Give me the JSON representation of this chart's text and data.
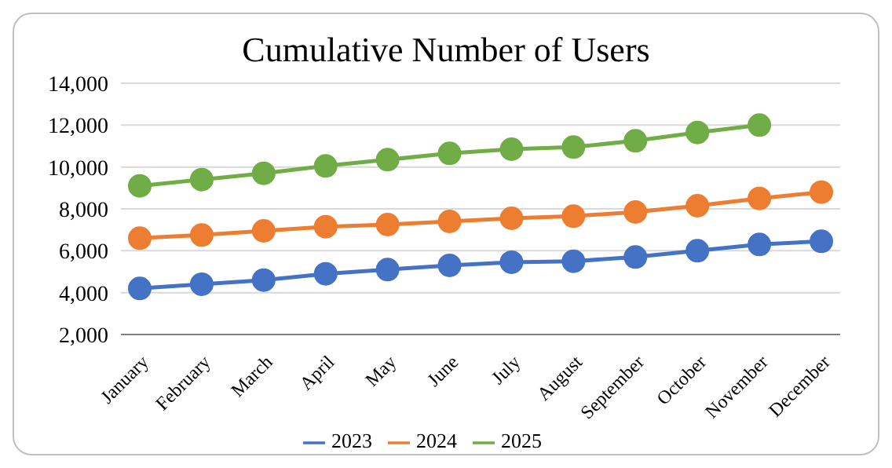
{
  "chart_data": {
    "type": "line",
    "title": "Cumulative Number of Users",
    "categories": [
      "January",
      "February",
      "March",
      "April",
      "May",
      "June",
      "July",
      "August",
      "September",
      "October",
      "November",
      "December"
    ],
    "series": [
      {
        "name": "2023",
        "color": "#4472c4",
        "values": [
          4200,
          4400,
          4600,
          4900,
          5100,
          5300,
          5450,
          5500,
          5700,
          6000,
          6300,
          6450
        ]
      },
      {
        "name": "2024",
        "color": "#ed7d31",
        "values": [
          6600,
          6750,
          6950,
          7150,
          7250,
          7400,
          7550,
          7650,
          7850,
          8150,
          8500,
          8800
        ]
      },
      {
        "name": "2025",
        "color": "#70ad47",
        "values": [
          9100,
          9400,
          9700,
          10050,
          10350,
          10650,
          10850,
          10950,
          11250,
          11650,
          12000,
          null
        ]
      }
    ],
    "ylim": [
      2000,
      14000
    ],
    "yticks": [
      {
        "value": 2000,
        "label": "2,000"
      },
      {
        "value": 4000,
        "label": "4,000"
      },
      {
        "value": 6000,
        "label": "6,000"
      },
      {
        "value": 8000,
        "label": "8,000"
      },
      {
        "value": 10000,
        "label": "10,000"
      },
      {
        "value": 12000,
        "label": "12,000"
      },
      {
        "value": 14000,
        "label": "14,000"
      }
    ],
    "grid": "y",
    "legend": "bottom",
    "marker": "circle",
    "line_style": "solid"
  }
}
